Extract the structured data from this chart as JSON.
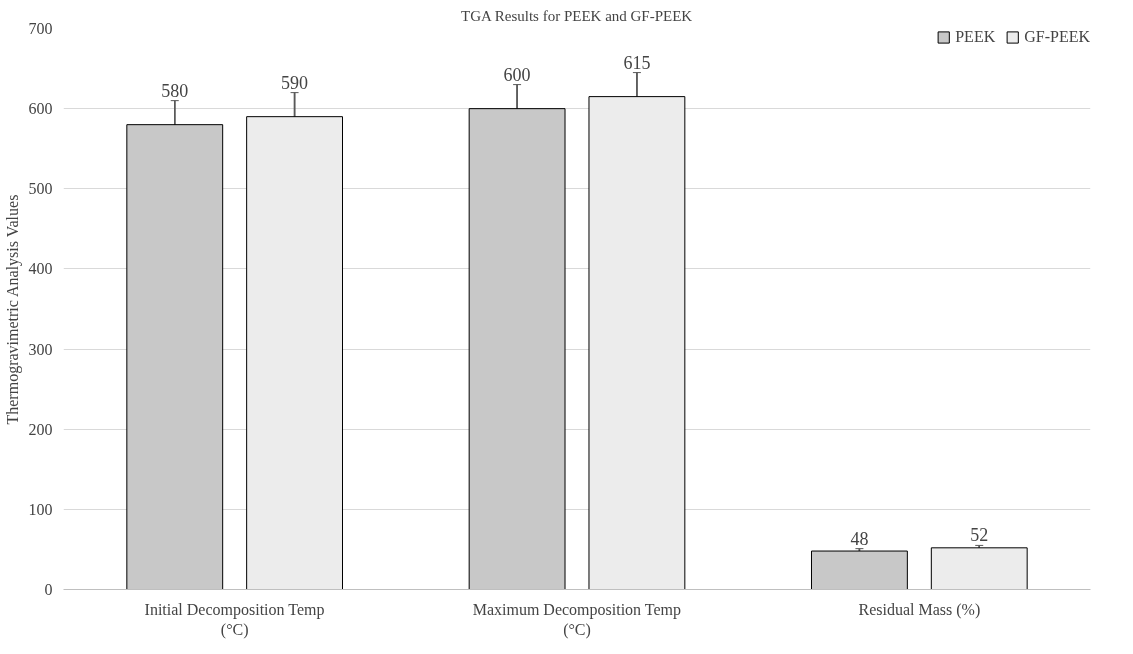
{
  "chart_data": {
    "type": "bar",
    "title": "TGA Results for PEEK and GF-PEEK",
    "ylabel": "Thermogravimetric Analysis Values",
    "categories": [
      "Initial Decomposition Temp (°C)",
      "Maximum Decomposition Temp (°C)",
      "Residual Mass (%)"
    ],
    "series": [
      {
        "name": "PEEK",
        "color": "#c8c8c8",
        "values": [
          580,
          600,
          48
        ],
        "errors": [
          30,
          30,
          3
        ]
      },
      {
        "name": "GF-PEEK",
        "color": "#ececec",
        "values": [
          590,
          615,
          52
        ],
        "errors": [
          30,
          30,
          3
        ]
      }
    ],
    "ylim": [
      0,
      700
    ],
    "yticks": [
      0,
      100,
      200,
      300,
      400,
      500,
      600,
      700
    ],
    "grid": "y",
    "legend": "top right",
    "data_labels": true
  }
}
